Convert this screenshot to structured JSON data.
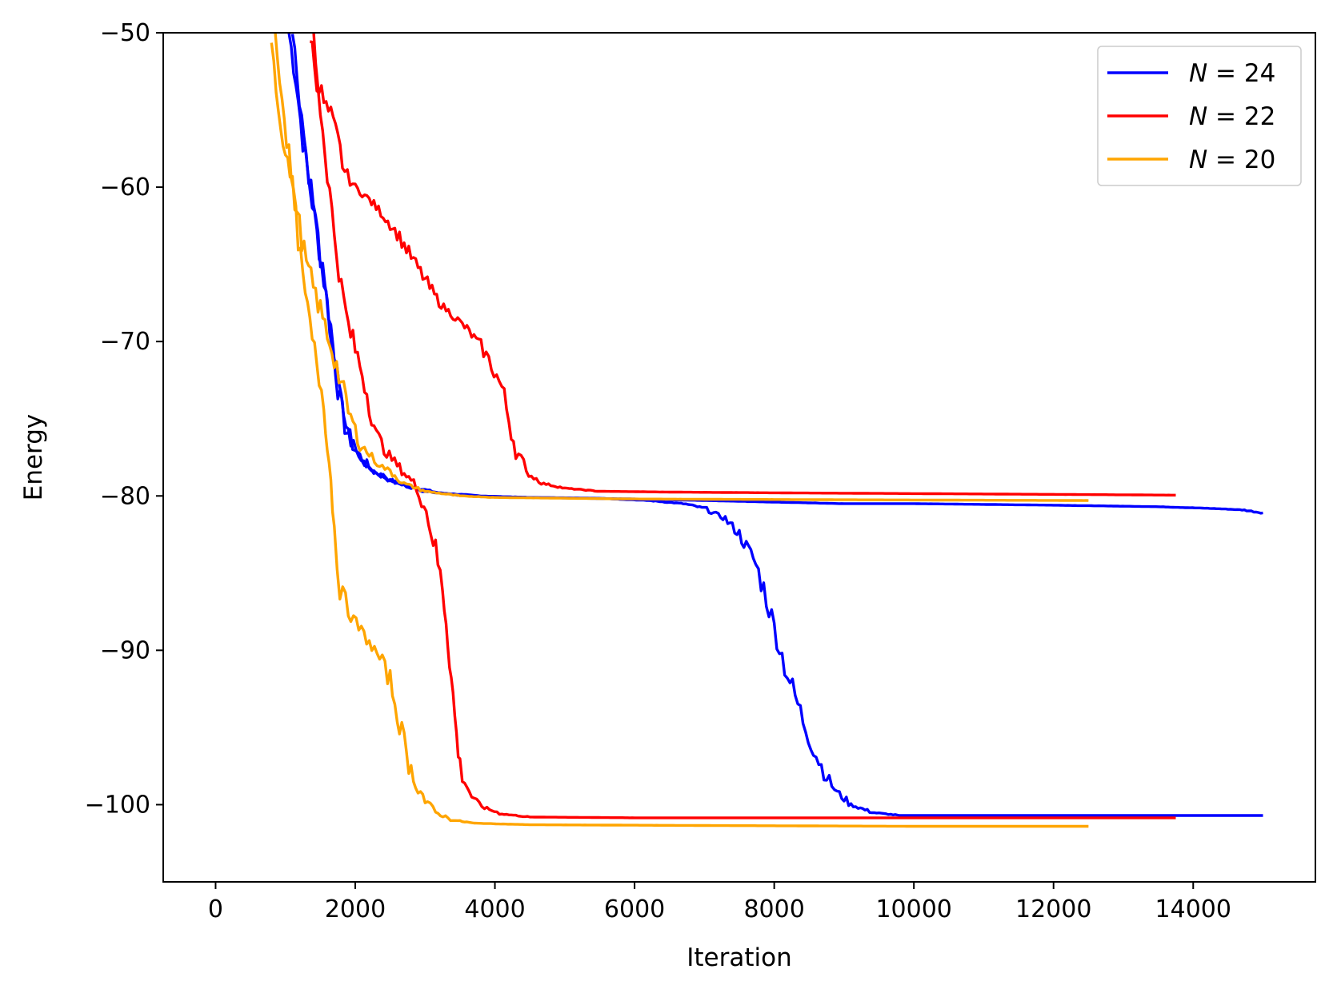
{
  "chart_data": {
    "type": "line",
    "title": "",
    "xlabel": "Iteration",
    "ylabel": "Energy",
    "xlim": [
      -750,
      15750
    ],
    "ylim": [
      -105,
      -50
    ],
    "xticks": [
      0,
      2000,
      4000,
      6000,
      8000,
      10000,
      12000,
      14000
    ],
    "xtick_labels": [
      "0",
      "2000",
      "4000",
      "6000",
      "8000",
      "10000",
      "12000",
      "14000"
    ],
    "yticks": [
      -100,
      -90,
      -80,
      -70,
      -60,
      -50
    ],
    "ytick_labels": [
      "−100",
      "−90",
      "−80",
      "−70",
      "−60",
      "−50"
    ],
    "grid": false,
    "legend": {
      "placement": "top-right",
      "entries": [
        {
          "series": "N24",
          "label_italic": "N",
          "label_rest": " = 24"
        },
        {
          "series": "N22",
          "label_italic": "N",
          "label_rest": " = 22"
        },
        {
          "series": "N20",
          "label_italic": "N",
          "label_rest": " = 20"
        }
      ]
    },
    "series": [
      {
        "name": "N = 24",
        "key": "N24",
        "color": "#0000ff",
        "runs": [
          [
            [
              1050,
              -50
            ],
            [
              1150,
              -53
            ],
            [
              1250,
              -57
            ],
            [
              1350,
              -60
            ],
            [
              1450,
              -63
            ],
            [
              1550,
              -66
            ],
            [
              1650,
              -69
            ],
            [
              1750,
              -73
            ],
            [
              1850,
              -75.5
            ],
            [
              2000,
              -77
            ],
            [
              2200,
              -78.2
            ],
            [
              2500,
              -79
            ],
            [
              2800,
              -79.4
            ],
            [
              3200,
              -79.8
            ],
            [
              3800,
              -80
            ],
            [
              4500,
              -80.1
            ],
            [
              6000,
              -80.2
            ],
            [
              7000,
              -80.3
            ],
            [
              8000,
              -80.4
            ],
            [
              9000,
              -80.5
            ],
            [
              10000,
              -80.5
            ],
            [
              12000,
              -80.6
            ],
            [
              13500,
              -80.7
            ],
            [
              14200,
              -80.8
            ],
            [
              14700,
              -80.9
            ],
            [
              15000,
              -81.1
            ]
          ],
          [
            [
              1100,
              -50
            ],
            [
              1200,
              -54
            ],
            [
              1300,
              -58
            ],
            [
              1400,
              -61
            ],
            [
              1500,
              -64.5
            ],
            [
              1600,
              -68
            ],
            [
              1700,
              -71
            ],
            [
              1800,
              -74
            ],
            [
              1900,
              -76
            ],
            [
              2050,
              -77.5
            ],
            [
              2300,
              -78.5
            ],
            [
              2600,
              -79.2
            ],
            [
              3000,
              -79.7
            ],
            [
              3600,
              -80
            ],
            [
              4500,
              -80.1
            ],
            [
              5500,
              -80.15
            ],
            [
              6200,
              -80.3
            ],
            [
              6700,
              -80.5
            ],
            [
              7000,
              -80.8
            ],
            [
              7300,
              -81.5
            ],
            [
              7500,
              -82.5
            ],
            [
              7700,
              -84
            ],
            [
              7850,
              -86
            ],
            [
              8000,
              -88.5
            ],
            [
              8150,
              -91
            ],
            [
              8300,
              -93
            ],
            [
              8450,
              -95
            ],
            [
              8600,
              -96.8
            ],
            [
              8750,
              -98.2
            ],
            [
              8900,
              -99.2
            ],
            [
              9100,
              -100
            ],
            [
              9400,
              -100.5
            ],
            [
              9800,
              -100.7
            ],
            [
              11000,
              -100.7
            ],
            [
              13000,
              -100.7
            ],
            [
              15000,
              -100.7
            ]
          ]
        ]
      },
      {
        "name": "N = 22",
        "key": "N22",
        "color": "#ff0000",
        "runs": [
          [
            [
              1350,
              -50
            ],
            [
              1450,
              -53
            ],
            [
              1550,
              -54.5
            ],
            [
              1650,
              -55.5
            ],
            [
              1750,
              -57
            ],
            [
              1850,
              -59
            ],
            [
              2000,
              -60
            ],
            [
              2200,
              -60.8
            ],
            [
              2400,
              -61.8
            ],
            [
              2600,
              -63
            ],
            [
              2800,
              -64.5
            ],
            [
              3000,
              -66
            ],
            [
              3200,
              -67.5
            ],
            [
              3400,
              -68.3
            ],
            [
              3600,
              -69.2
            ],
            [
              3800,
              -70.3
            ],
            [
              3950,
              -71.5
            ],
            [
              4100,
              -73
            ],
            [
              4200,
              -75
            ],
            [
              4300,
              -77
            ],
            [
              4450,
              -78.5
            ],
            [
              4700,
              -79.2
            ],
            [
              5000,
              -79.5
            ],
            [
              5500,
              -79.7
            ],
            [
              6500,
              -79.75
            ],
            [
              8000,
              -79.8
            ],
            [
              10000,
              -79.85
            ],
            [
              12000,
              -79.9
            ],
            [
              13750,
              -79.95
            ]
          ],
          [
            [
              1400,
              -50
            ],
            [
              1500,
              -55
            ],
            [
              1600,
              -59
            ],
            [
              1700,
              -63
            ],
            [
              1800,
              -66.5
            ],
            [
              1900,
              -69
            ],
            [
              2000,
              -70.5
            ],
            [
              2100,
              -72
            ],
            [
              2200,
              -74
            ],
            [
              2300,
              -76
            ],
            [
              2450,
              -77.2
            ],
            [
              2600,
              -78
            ],
            [
              2800,
              -79
            ],
            [
              2950,
              -80
            ],
            [
              3050,
              -81.5
            ],
            [
              3150,
              -83.5
            ],
            [
              3250,
              -86
            ],
            [
              3300,
              -88
            ],
            [
              3350,
              -90.5
            ],
            [
              3400,
              -93
            ],
            [
              3450,
              -95.5
            ],
            [
              3500,
              -97.5
            ],
            [
              3600,
              -98.8
            ],
            [
              3700,
              -99.7
            ],
            [
              3850,
              -100.2
            ],
            [
              4100,
              -100.6
            ],
            [
              4500,
              -100.8
            ],
            [
              6000,
              -100.85
            ],
            [
              10000,
              -100.85
            ],
            [
              13750,
              -100.85
            ]
          ]
        ]
      },
      {
        "name": "N = 20",
        "key": "N20",
        "color": "#ffa500",
        "runs": [
          [
            [
              800,
              -50
            ],
            [
              900,
              -55
            ],
            [
              1000,
              -57.5
            ],
            [
              1100,
              -60
            ],
            [
              1200,
              -62.5
            ],
            [
              1300,
              -65
            ],
            [
              1400,
              -66.5
            ],
            [
              1500,
              -68
            ],
            [
              1600,
              -69.5
            ],
            [
              1700,
              -71
            ],
            [
              1800,
              -72.8
            ],
            [
              1900,
              -74.5
            ],
            [
              2000,
              -75.8
            ],
            [
              2100,
              -76.8
            ],
            [
              2200,
              -77.3
            ],
            [
              2350,
              -78
            ],
            [
              2500,
              -78.4
            ],
            [
              2700,
              -79.2
            ],
            [
              3000,
              -79.7
            ],
            [
              3500,
              -80
            ],
            [
              4000,
              -80.1
            ],
            [
              6000,
              -80.2
            ],
            [
              9000,
              -80.25
            ],
            [
              12500,
              -80.3
            ]
          ],
          [
            [
              850,
              -50
            ],
            [
              950,
              -54
            ],
            [
              1050,
              -58
            ],
            [
              1150,
              -62
            ],
            [
              1250,
              -66
            ],
            [
              1350,
              -69
            ],
            [
              1450,
              -71.5
            ],
            [
              1550,
              -74
            ],
            [
              1600,
              -76.5
            ],
            [
              1650,
              -79
            ],
            [
              1700,
              -82
            ],
            [
              1780,
              -86
            ],
            [
              1900,
              -87.5
            ],
            [
              2050,
              -88.5
            ],
            [
              2200,
              -89.5
            ],
            [
              2350,
              -90.5
            ],
            [
              2500,
              -92
            ],
            [
              2600,
              -94
            ],
            [
              2700,
              -96
            ],
            [
              2800,
              -97.8
            ],
            [
              2900,
              -98.8
            ],
            [
              3000,
              -99.8
            ],
            [
              3150,
              -100.5
            ],
            [
              3400,
              -101
            ],
            [
              3700,
              -101.2
            ],
            [
              4500,
              -101.3
            ],
            [
              7000,
              -101.35
            ],
            [
              10000,
              -101.4
            ],
            [
              12500,
              -101.4
            ]
          ]
        ]
      }
    ]
  }
}
